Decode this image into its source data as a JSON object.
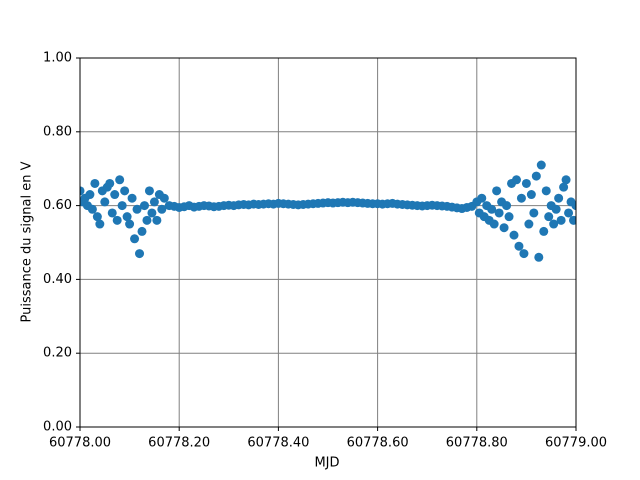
{
  "chart_data": {
    "type": "scatter",
    "xlabel": "MJD",
    "ylabel": "Puissance du signal en V",
    "color": "#1f77b4",
    "grid": true,
    "xlim": [
      60778.0,
      60779.0
    ],
    "xticks": [
      {
        "value": 60778.0,
        "label": "60778.00"
      },
      {
        "value": 60778.2,
        "label": "60778.20"
      },
      {
        "value": 60778.4,
        "label": "60778.40"
      },
      {
        "value": 60778.6,
        "label": "60778.60"
      },
      {
        "value": 60778.8,
        "label": "60778.80"
      },
      {
        "value": 60779.0,
        "label": "60779.00"
      }
    ],
    "ylim": [
      0,
      1
    ],
    "yticks": [
      {
        "value": 0,
        "label": "0.00"
      },
      {
        "value": 0.2,
        "label": "0.20"
      },
      {
        "value": 0.4,
        "label": "0.40"
      },
      {
        "value": 0.6,
        "label": "0.60"
      },
      {
        "value": 0.8,
        "label": "0.80"
      },
      {
        "value": 1,
        "label": "1.00"
      }
    ],
    "x": [
      60778.0,
      60778.005,
      60778.01,
      60778.015,
      60778.02,
      60778.025,
      60778.03,
      60778.035,
      60778.04,
      60778.045,
      60778.05,
      60778.055,
      60778.06,
      60778.065,
      60778.07,
      60778.075,
      60778.08,
      60778.085,
      60778.09,
      60778.095,
      60778.1,
      60778.105,
      60778.11,
      60778.115,
      60778.12,
      60778.125,
      60778.13,
      60778.135,
      60778.14,
      60778.145,
      60778.15,
      60778.155,
      60778.16,
      60778.165,
      60778.17,
      60778.18,
      60778.19,
      60778.2,
      60778.21,
      60778.22,
      60778.23,
      60778.24,
      60778.25,
      60778.26,
      60778.27,
      60778.28,
      60778.29,
      60778.3,
      60778.31,
      60778.32,
      60778.33,
      60778.34,
      60778.35,
      60778.36,
      60778.37,
      60778.38,
      60778.39,
      60778.4,
      60778.41,
      60778.42,
      60778.43,
      60778.44,
      60778.45,
      60778.46,
      60778.47,
      60778.48,
      60778.49,
      60778.5,
      60778.51,
      60778.52,
      60778.53,
      60778.54,
      60778.55,
      60778.56,
      60778.57,
      60778.58,
      60778.59,
      60778.6,
      60778.61,
      60778.62,
      60778.63,
      60778.64,
      60778.65,
      60778.66,
      60778.67,
      60778.68,
      60778.69,
      60778.7,
      60778.71,
      60778.72,
      60778.73,
      60778.74,
      60778.75,
      60778.76,
      60778.77,
      60778.78,
      60778.79,
      60778.8,
      60778.805,
      60778.81,
      60778.815,
      60778.82,
      60778.825,
      60778.83,
      60778.835,
      60778.84,
      60778.845,
      60778.85,
      60778.855,
      60778.86,
      60778.865,
      60778.87,
      60778.875,
      60778.88,
      60778.885,
      60778.89,
      60778.895,
      60778.9,
      60778.905,
      60778.91,
      60778.915,
      60778.92,
      60778.925,
      60778.93,
      60778.935,
      60778.94,
      60778.945,
      60778.95,
      60778.955,
      60778.96,
      60778.965,
      60778.97,
      60778.975,
      60778.98,
      60778.985,
      60778.99,
      60778.995,
      60779.0
    ],
    "values": [
      0.64,
      0.61,
      0.62,
      0.6,
      0.63,
      0.59,
      0.66,
      0.57,
      0.55,
      0.64,
      0.61,
      0.65,
      0.66,
      0.58,
      0.63,
      0.56,
      0.67,
      0.6,
      0.64,
      0.57,
      0.55,
      0.62,
      0.51,
      0.59,
      0.47,
      0.53,
      0.6,
      0.56,
      0.64,
      0.58,
      0.61,
      0.56,
      0.63,
      0.59,
      0.62,
      0.6,
      0.598,
      0.595,
      0.597,
      0.6,
      0.596,
      0.598,
      0.6,
      0.599,
      0.597,
      0.598,
      0.6,
      0.601,
      0.6,
      0.602,
      0.603,
      0.602,
      0.604,
      0.603,
      0.604,
      0.605,
      0.604,
      0.606,
      0.605,
      0.604,
      0.603,
      0.602,
      0.603,
      0.604,
      0.605,
      0.606,
      0.607,
      0.608,
      0.607,
      0.608,
      0.609,
      0.608,
      0.609,
      0.608,
      0.607,
      0.606,
      0.605,
      0.605,
      0.604,
      0.605,
      0.606,
      0.604,
      0.603,
      0.602,
      0.601,
      0.6,
      0.599,
      0.6,
      0.601,
      0.6,
      0.599,
      0.598,
      0.596,
      0.594,
      0.592,
      0.595,
      0.598,
      0.61,
      0.58,
      0.62,
      0.57,
      0.6,
      0.56,
      0.59,
      0.55,
      0.64,
      0.58,
      0.61,
      0.54,
      0.6,
      0.57,
      0.66,
      0.52,
      0.67,
      0.49,
      0.62,
      0.47,
      0.66,
      0.55,
      0.63,
      0.58,
      0.68,
      0.46,
      0.71,
      0.53,
      0.64,
      0.57,
      0.6,
      0.55,
      0.59,
      0.62,
      0.56,
      0.65,
      0.67,
      0.58,
      0.61,
      0.56,
      0.6
    ]
  }
}
